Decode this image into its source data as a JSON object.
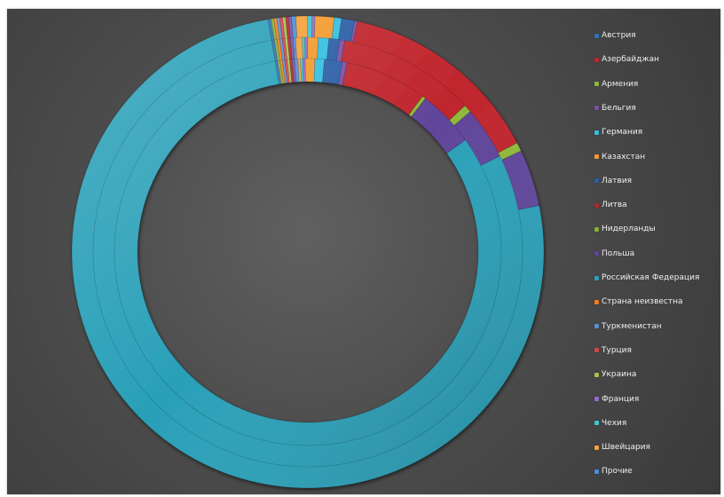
{
  "chart_data": {
    "type": "donut",
    "rings": [
      {
        "values": [
          0.3,
          0.2,
          0.2,
          0.2,
          0.8,
          0.8,
          1.5,
          0.4,
          6.9,
          0.3,
          4.8,
          82.8,
          0.2,
          0.2,
          0.2,
          0.2,
          0.2,
          0.2,
          0.2,
          0.2
        ]
      },
      {
        "values": [
          0.2,
          0.5,
          0.2,
          0.2,
          0.8,
          0.8,
          0.8,
          0.4,
          10.4,
          0.6,
          4.0,
          80.4,
          0.2,
          0.2,
          0.2,
          0.2,
          0.2,
          0.2,
          0.2,
          0.2
        ]
      },
      {
        "values": [
          0.3,
          0.8,
          0.3,
          0.2,
          1.3,
          0.5,
          0.9,
          0.2,
          14.0,
          0.6,
          3.9,
          75.6,
          0.2,
          0.2,
          0.2,
          0.2,
          0.2,
          0.2,
          0.2,
          0.2
        ]
      }
    ],
    "categories_order_clockwise": [
      "Прочие",
      "Швейцария",
      "Чехия",
      "Франция",
      "Казахстан",
      "Германия",
      "Латвия",
      "Бельгия",
      "Азербайджан",
      "Армения",
      "Польша",
      "Российская Федерация",
      "Австрия",
      "Нидерланды",
      "Страна неизвестна",
      "Туркменистан",
      "Турция",
      "Украина",
      "Литва",
      "Бельгия2"
    ],
    "legend": [
      {
        "label": "Австрия",
        "color": "#2e75b6"
      },
      {
        "label": "Азербайджан",
        "color": "#c0262d"
      },
      {
        "label": "Армения",
        "color": "#8fb83a"
      },
      {
        "label": "Бельгия",
        "color": "#7b4fa8"
      },
      {
        "label": "Германия",
        "color": "#33bfe0"
      },
      {
        "label": "Казахстан",
        "color": "#f29a2e"
      },
      {
        "label": "Латвия",
        "color": "#2b5fa6"
      },
      {
        "label": "Литва",
        "color": "#b02a2a"
      },
      {
        "label": "Нидерланды",
        "color": "#86ad3c"
      },
      {
        "label": "Польша",
        "color": "#60459a"
      },
      {
        "label": "Российская Федерация",
        "color": "#2aa0b8"
      },
      {
        "label": "Страна неизвестна",
        "color": "#f07f1e"
      },
      {
        "label": "Туркменистан",
        "color": "#5b8fd0"
      },
      {
        "label": "Турция",
        "color": "#d6454a"
      },
      {
        "label": "Украина",
        "color": "#a5c24b"
      },
      {
        "label": "Франция",
        "color": "#9a6ac8"
      },
      {
        "label": "Чехия",
        "color": "#40c5cf"
      },
      {
        "label": "Швейцария",
        "color": "#f3a13d"
      },
      {
        "label": "Прочие",
        "color": "#4a90d9"
      }
    ],
    "slice_colors": [
      "#4a90d9",
      "#f3a13d",
      "#40c5cf",
      "#9a6ac8",
      "#f29a2e",
      "#33bfe0",
      "#2b5fa6",
      "#7b4fa8",
      "#c0262d",
      "#8fb83a",
      "#60459a",
      "#2aa0b8",
      "#2e75b6",
      "#86ad3c",
      "#f07f1e",
      "#5b8fd0",
      "#d6454a",
      "#a5c24b",
      "#b02a2a",
      "#7b4fa8"
    ],
    "legend_position": "right",
    "start_angle_deg": -4,
    "background": "#4a4a4a"
  }
}
